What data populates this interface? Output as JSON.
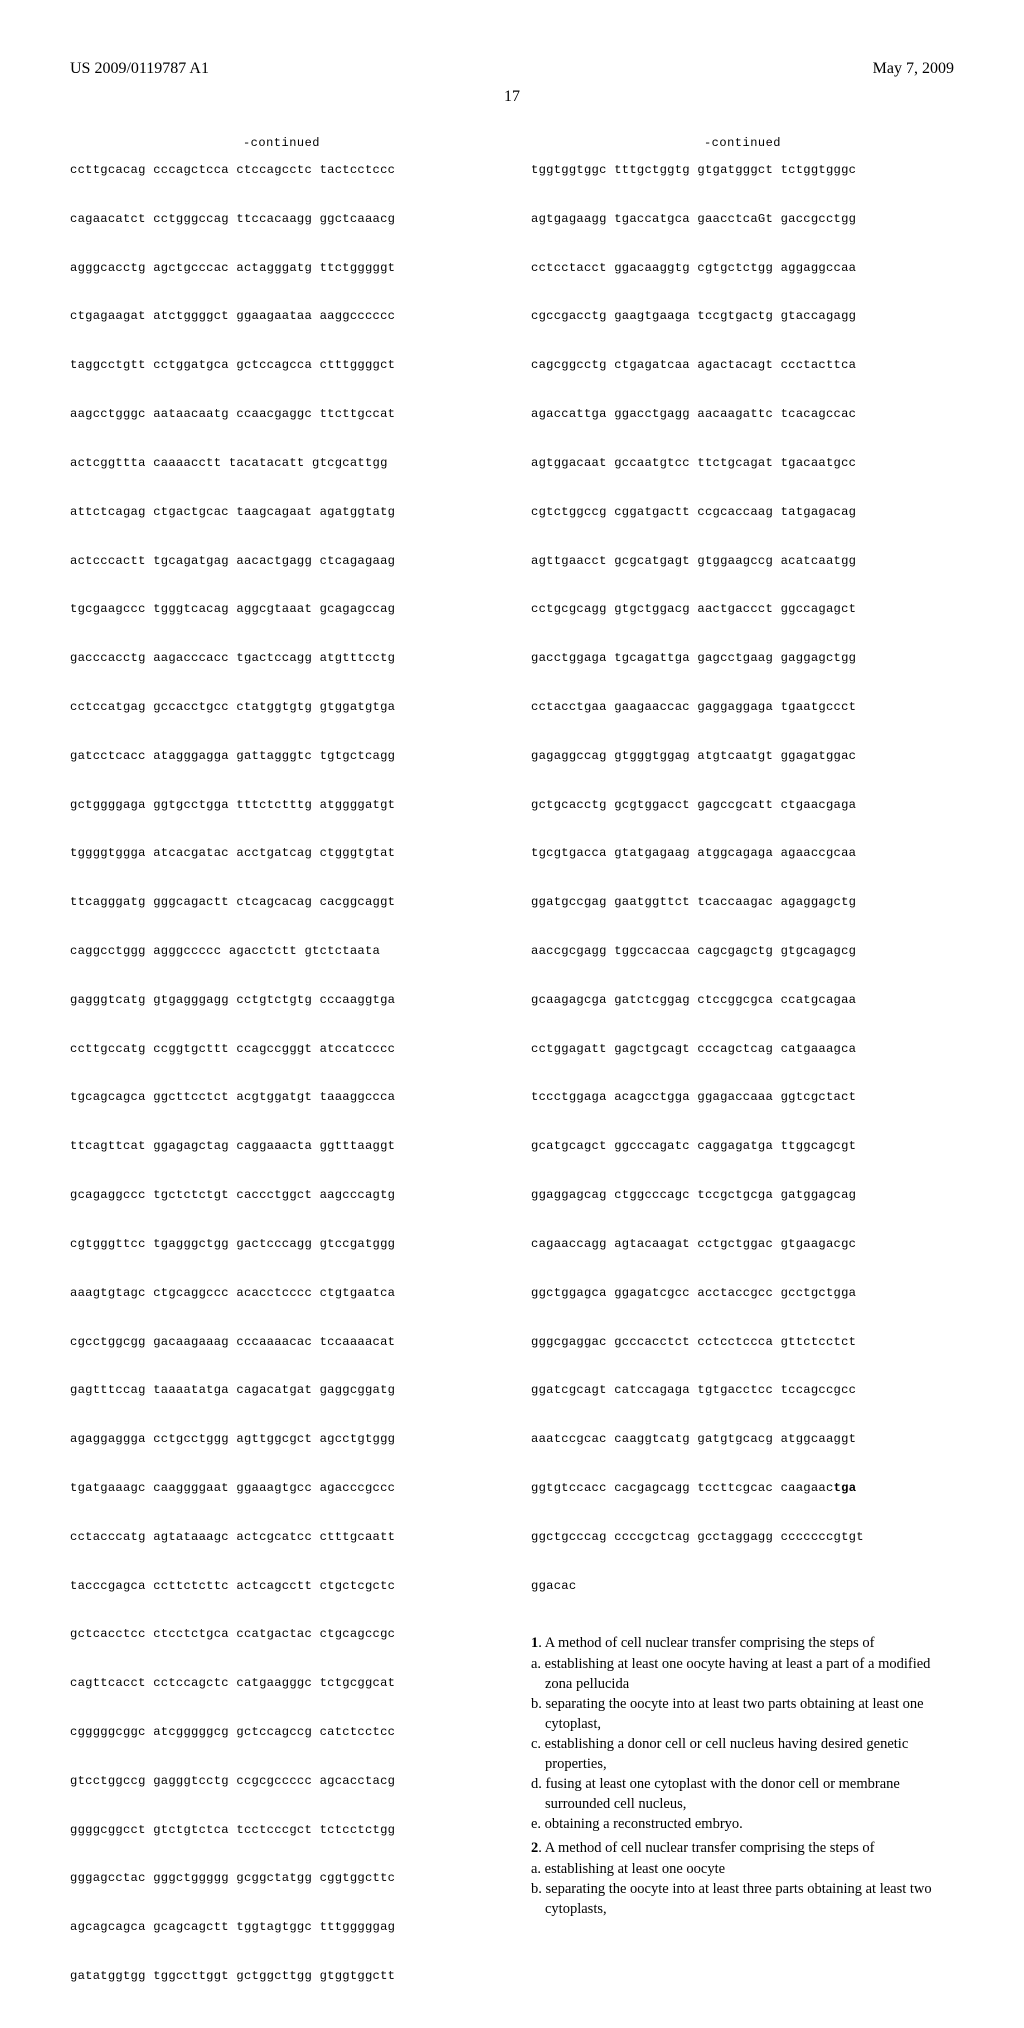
{
  "header": {
    "patent_id": "US 2009/0119787 A1",
    "date": "May 7, 2009",
    "page_num": "17"
  },
  "left_column": {
    "continued_label": "-continued",
    "sequence_lines": [
      "ccttgcacag cccagctcca ctccagcctc tactcctccc",
      "cagaacatct cctgggccag ttccacaagg ggctcaaacg",
      "agggcacctg agctgcccac actagggatg ttctgggggt",
      "ctgagaagat atctggggct ggaagaataa aaggcccccc",
      "taggcctgtt cctggatgca gctccagcca ctttggggct",
      "aagcctgggc aataacaatg ccaacgaggc ttcttgccat",
      "actcggttta caaaacctt tacatacatt gtcgcattgg",
      "attctcagag ctgactgcac taagcagaat agatggtatg",
      "actcccactt tgcagatgag aacactgagg ctcagagaag",
      "tgcgaagccc tgggtcacag aggcgtaaat gcagagccag",
      "gacccacctg aagacccacc tgactccagg atgtttcctg",
      "cctccatgag gccacctgcc ctatggtgtg gtggatgtga",
      "gatcctcacc atagggagga gattagggtc tgtgctcagg",
      "gctggggaga ggtgcctgga tttctctttg atggggatgt",
      "tggggtggga atcacgatac acctgatcag ctgggtgtat",
      "ttcagggatg gggcagactt ctcagcacag cacggcaggt",
      "caggcctggg agggccccc agacctctt gtctctaata",
      "gagggtcatg gtgagggagg cctgtctgtg cccaaggtga",
      "ccttgccatg ccggtgcttt ccagccgggt atccatcccc",
      "tgcagcagca ggcttcctct acgtggatgt taaaggccca",
      "ttcagttcat ggagagctag caggaaacta ggtttaaggt",
      "gcagaggccc tgctctctgt caccctggct aagcccagtg",
      "cgtgggttcc tgagggctgg gactcccagg gtccgatggg",
      "aaagtgtagc ctgcaggccc acacctcccc ctgtgaatca",
      "cgcctggcgg gacaagaaag cccaaaacac tccaaaacat",
      "gagtttccag taaaatatga cagacatgat gaggcggatg",
      "agaggaggga cctgcctggg agttggcgct agcctgtggg",
      "tgatgaaagc caaggggaat ggaaagtgcc agacccgccc",
      "cctacccatg agtataaagc actcgcatcc ctttgcaatt",
      "tacccgagca ccttctcttc actcagcctt ctgctcgctc",
      "gctcacctcc ctcctctgca ccatgactac ctgcagccgc",
      "cagttcacct cctccagctc catgaagggc tctgcggcat",
      "cgggggcggc atcgggggcg gctccagccg catctcctcc",
      "gtcctggccg gagggtcctg ccgcgccccc agcacctacg",
      "ggggcggcct gtctgtctca tcctcccgct tctcctctgg",
      "gggagcctac gggctggggg gcggctatgg cggtggcttc",
      "agcagcagca gcagcagctt tggtagtggc tttgggggag",
      "gatatggtgg tggccttggt gctggcttgg gtggtggctt"
    ]
  },
  "right_column": {
    "continued_label": "-continued",
    "sequence_lines": [
      "tggtggtggc tttgctggtg gtgatgggct tctggtgggc",
      "agtgagaagg tgaccatgca gaacctcaGt gaccgcctgg",
      "cctcctacct ggacaaggtg cgtgctctgg aggaggccaa",
      "cgccgacctg gaagtgaaga tccgtgactg gtaccagagg",
      "cagcggcctg ctgagatcaa agactacagt ccctacttca",
      "agaccattga ggacctgagg aacaagattc tcacagccac",
      "agtggacaat gccaatgtcc ttctgcagat tgacaatgcc",
      "cgtctggccg cggatgactt ccgcaccaag tatgagacag",
      "agttgaacct gcgcatgagt gtggaagccg acatcaatgg",
      "cctgcgcagg gtgctggacg aactgaccct ggccagagct",
      "gacctggaga tgcagattga gagcctgaag gaggagctgg",
      "cctacctgaa gaagaaccac gaggaggaga tgaatgccct",
      "gagaggccag gtgggtggag atgtcaatgt ggagatggac",
      "gctgcacctg gcgtggacct gagccgcatt ctgaacgaga",
      "tgcgtgacca gtatgagaag atggcagaga agaaccgcaa",
      "ggatgccgag gaatggttct tcaccaagac agaggagctg",
      "aaccgcgagg tggccaccaa cagcgagctg gtgcagagcg",
      "gcaagagcga gatctcggag ctccggcgca ccatgcagaa",
      "cctggagatt gagctgcagt cccagctcag catgaaagca",
      "tccctggaga acagcctgga ggagaccaaa ggtcgctact",
      "gcatgcagct ggcccagatc caggagatga ttggcagcgt",
      "ggaggagcag ctggcccagc tccgctgcga gatggagcag",
      "cagaaccagg agtacaagat cctgctggac gtgaagacgc",
      "ggctggagca ggagatcgcc acctaccgcc gcctgctgga",
      "gggcgaggac gcccacctct cctcctccca gttctcctct",
      "ggatcgcagt catccagaga tgtgacctcc tccagccgcc",
      "aaatccgcac caaggtcatg gatgtgcacg atggcaaggt"
    ],
    "sequence_with_bold_prefix": "ggtgtccacc cacgagcagg tccttcgcac caagaac",
    "sequence_with_bold_bold": "tga",
    "sequence_lines_after": [
      "ggctgcccag ccccgctcag gcctaggagg cccccccgtgt",
      "ggacac"
    ]
  },
  "claims": {
    "c1_head": "1",
    "c1_text": ". A method of cell nuclear transfer comprising the steps of",
    "c1a": "a. establishing at least one oocyte having at least a part of a modified zona pellucida",
    "c1b": "b. separating the oocyte into at least two parts obtaining at least one cytoplast,",
    "c1c": "c. establishing a donor cell or cell nucleus having desired genetic properties,",
    "c1d": "d. fusing at least one cytoplast with the donor cell or membrane surrounded cell nucleus,",
    "c1e": "e. obtaining a reconstructed embryo.",
    "c2_head": "2",
    "c2_text": ". A method of cell nuclear transfer comprising the steps of",
    "c2a": "a. establishing at least one oocyte",
    "c2b": "b. separating the oocyte into at least three parts obtaining at least two cytoplasts,"
  }
}
